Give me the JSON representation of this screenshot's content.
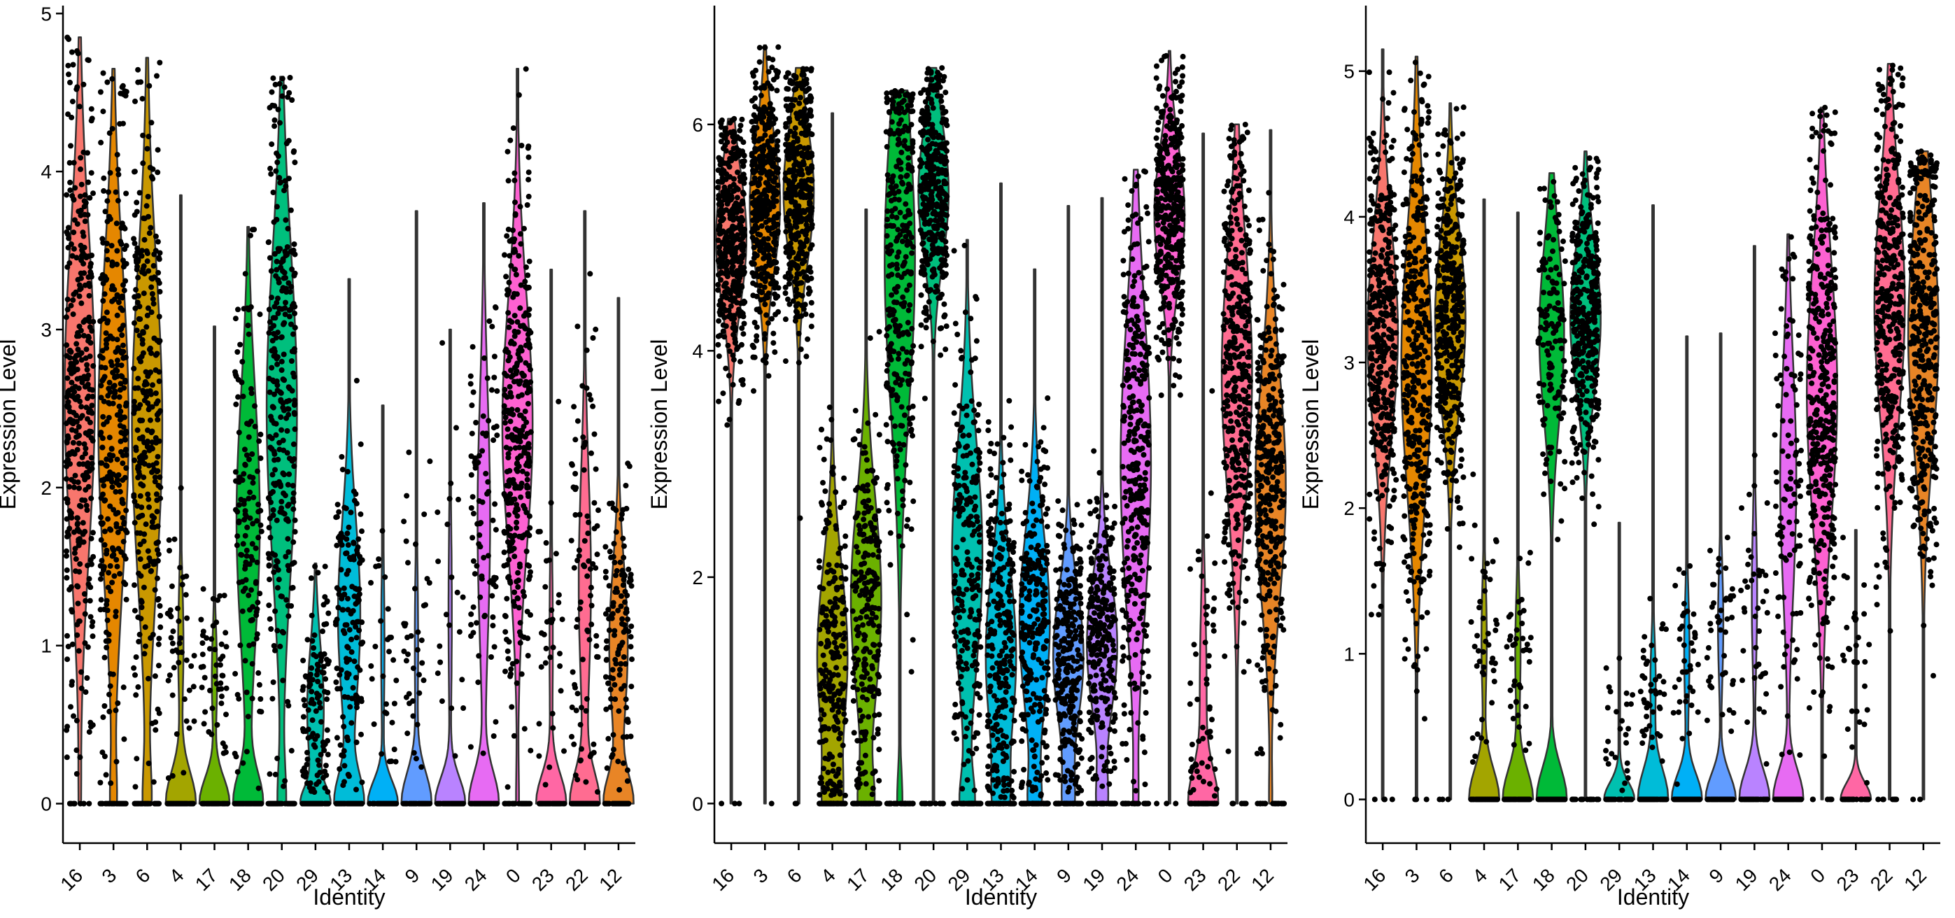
{
  "chart_data": [
    {
      "type": "violin",
      "xlabel": "Identity",
      "ylabel": "Expression Level",
      "categories": [
        "16",
        "3",
        "6",
        "4",
        "17",
        "18",
        "20",
        "29",
        "13",
        "14",
        "9",
        "19",
        "24",
        "0",
        "23",
        "22",
        "12"
      ],
      "colors": [
        "#F8766D",
        "#E58700",
        "#C99800",
        "#A3A500",
        "#6BB100",
        "#00BA38",
        "#00BF7D",
        "#00C0AF",
        "#00BCD8",
        "#00B0F6",
        "#619CFF",
        "#B983FF",
        "#E76BF3",
        "#FD61D1",
        "#FF67A4",
        "#FF6C91",
        "#E88526"
      ],
      "ylim": [
        -0.25,
        5.05
      ],
      "yticks": [
        0,
        1,
        2,
        3,
        4,
        5
      ],
      "max": [
        4.85,
        4.65,
        4.72,
        3.85,
        3.02,
        3.65,
        4.6,
        1.52,
        3.32,
        2.52,
        3.75,
        3.0,
        3.8,
        4.65,
        3.38,
        3.75,
        3.2
      ],
      "pct_zero": [
        0.05,
        0.15,
        0.2,
        0.85,
        0.85,
        0.55,
        0.2,
        0.6,
        0.55,
        0.9,
        0.9,
        0.9,
        0.7,
        0.08,
        0.9,
        0.7,
        0.6
      ],
      "center": [
        2.6,
        2.4,
        2.4,
        1.0,
        0.8,
        1.8,
        2.5,
        0.6,
        1.2,
        1.0,
        1.0,
        1.2,
        1.8,
        2.4,
        1.0,
        1.4,
        1.0
      ],
      "spread": [
        1.0,
        1.0,
        1.0,
        0.4,
        0.3,
        0.8,
        1.0,
        0.4,
        0.6,
        0.5,
        0.5,
        0.6,
        0.8,
        0.8,
        0.6,
        0.7,
        0.5
      ]
    },
    {
      "type": "violin",
      "xlabel": "Identity",
      "ylabel": "Expression Level",
      "categories": [
        "16",
        "3",
        "6",
        "4",
        "17",
        "18",
        "20",
        "29",
        "13",
        "14",
        "9",
        "19",
        "24",
        "0",
        "23",
        "22",
        "12"
      ],
      "colors": [
        "#F8766D",
        "#E58700",
        "#C99800",
        "#A3A500",
        "#6BB100",
        "#00BA38",
        "#00BF7D",
        "#00C0AF",
        "#00BCD8",
        "#00B0F6",
        "#619CFF",
        "#B983FF",
        "#E76BF3",
        "#FD61D1",
        "#FF67A4",
        "#FF6C91",
        "#E88526"
      ],
      "ylim": [
        -0.35,
        7.05
      ],
      "yticks": [
        0,
        2,
        4,
        6
      ],
      "max": [
        6.05,
        6.7,
        6.5,
        6.1,
        5.25,
        6.3,
        6.5,
        4.98,
        5.48,
        4.72,
        5.28,
        5.35,
        5.6,
        6.65,
        5.92,
        6.0,
        5.95
      ],
      "pct_zero": [
        0.01,
        0.01,
        0.01,
        0.3,
        0.3,
        0.15,
        0.05,
        0.3,
        0.25,
        0.25,
        0.25,
        0.25,
        0.1,
        0.01,
        0.8,
        0.01,
        0.08
      ],
      "center": [
        5.0,
        5.3,
        5.4,
        1.3,
        1.8,
        4.8,
        5.4,
        2.2,
        1.3,
        1.6,
        1.3,
        1.4,
        3.0,
        5.2,
        1.0,
        3.8,
        2.8
      ],
      "spread": [
        0.6,
        0.6,
        0.6,
        0.8,
        0.9,
        1.3,
        0.6,
        1.0,
        0.8,
        0.8,
        0.6,
        0.6,
        1.3,
        0.6,
        0.8,
        1.1,
        1.0
      ]
    },
    {
      "type": "violin",
      "xlabel": "Identity",
      "ylabel": "Expression Level",
      "categories": [
        "16",
        "3",
        "6",
        "4",
        "17",
        "18",
        "20",
        "29",
        "13",
        "14",
        "9",
        "19",
        "24",
        "0",
        "23",
        "22",
        "12"
      ],
      "colors": [
        "#F8766D",
        "#E58700",
        "#C99800",
        "#A3A500",
        "#6BB100",
        "#00BA38",
        "#00BF7D",
        "#00C0AF",
        "#00BCD8",
        "#00B0F6",
        "#619CFF",
        "#B983FF",
        "#E76BF3",
        "#FD61D1",
        "#FF67A4",
        "#FF6C91",
        "#E88526"
      ],
      "ylim": [
        -0.3,
        5.45
      ],
      "yticks": [
        0,
        1,
        2,
        3,
        4,
        5
      ],
      "max": [
        5.15,
        5.1,
        4.78,
        4.12,
        4.03,
        4.3,
        4.45,
        1.9,
        4.08,
        3.18,
        3.2,
        3.8,
        3.88,
        4.75,
        1.85,
        5.05,
        4.45
      ],
      "pct_zero": [
        0.02,
        0.02,
        0.02,
        0.85,
        0.85,
        0.55,
        0.05,
        0.95,
        0.85,
        0.85,
        0.85,
        0.85,
        0.65,
        0.03,
        0.95,
        0.03,
        0.03
      ],
      "center": [
        3.2,
        3.0,
        3.3,
        1.1,
        1.0,
        3.2,
        3.3,
        0.5,
        0.8,
        1.0,
        1.2,
        1.4,
        2.2,
        2.8,
        0.8,
        3.4,
        3.2
      ],
      "spread": [
        0.7,
        0.9,
        0.6,
        0.4,
        0.4,
        0.6,
        0.5,
        0.3,
        0.3,
        0.4,
        0.4,
        0.5,
        0.8,
        0.9,
        0.4,
        0.8,
        0.8
      ]
    }
  ]
}
